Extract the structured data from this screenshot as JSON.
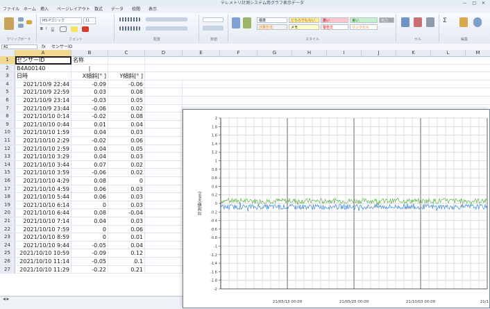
{
  "window": {
    "title": "テレメトリ計測システム用グラフ表示データ"
  },
  "menu_tabs": [
    "ファイル",
    "ホーム",
    "挿入",
    "ページレイアウト",
    "数式",
    "データ",
    "校閲",
    "表示"
  ],
  "ribbon": {
    "font_name": "MS Pゴシック",
    "font_size": "11",
    "styles": [
      "標準",
      "どちらでもない",
      "悪い",
      "良い",
      "計算方法",
      "メモ",
      "警告文",
      "リンクセル",
      "出力"
    ],
    "group_labels": [
      "クリップボード",
      "フォント",
      "配置",
      "数値",
      "スタイル",
      "セル",
      "編集"
    ]
  },
  "formula_bar": {
    "namebox": "A1",
    "fx": "fx",
    "content": "センサーID"
  },
  "columns": [
    "A",
    "B",
    "C",
    "D",
    "E",
    "F",
    "G",
    "H",
    "I",
    "J",
    "K",
    "L",
    "M"
  ],
  "sheet": {
    "header_row": {
      "sensor_label": "センサーID",
      "name_label": "名称"
    },
    "sensor_id": "B4A00140",
    "row2_b_mark": "|",
    "col_headers": {
      "a": "日時",
      "b": "X傾斜[° ]",
      "c": "Y傾斜[° ]"
    },
    "rows": [
      {
        "n": "4",
        "dt": "2021/10/9 22:44",
        "x": "-0.09",
        "y": "-0.06"
      },
      {
        "n": "5",
        "dt": "2021/10/9 22:59",
        "x": "0.03",
        "y": "0.08"
      },
      {
        "n": "6",
        "dt": "2021/10/9 23:14",
        "x": "-0.03",
        "y": "0.05"
      },
      {
        "n": "7",
        "dt": "2021/10/9 23:44",
        "x": "-0.06",
        "y": "0.02"
      },
      {
        "n": "8",
        "dt": "2021/10/10 0:14",
        "x": "-0.02",
        "y": "0.08"
      },
      {
        "n": "9",
        "dt": "2021/10/10 0:44",
        "x": "0.01",
        "y": "0.04"
      },
      {
        "n": "10",
        "dt": "2021/10/10 1:59",
        "x": "0.04",
        "y": "0.03"
      },
      {
        "n": "11",
        "dt": "2021/10/10 2:29",
        "x": "-0.02",
        "y": "0.06"
      },
      {
        "n": "12",
        "dt": "2021/10/10 2:59",
        "x": "0.04",
        "y": "0.05"
      },
      {
        "n": "13",
        "dt": "2021/10/10 3:29",
        "x": "0.04",
        "y": "0.03"
      },
      {
        "n": "14",
        "dt": "2021/10/10 3:44",
        "x": "0.07",
        "y": "0.02"
      },
      {
        "n": "15",
        "dt": "2021/10/10 3:59",
        "x": "-0.06",
        "y": "0.02"
      },
      {
        "n": "16",
        "dt": "2021/10/10 4:29",
        "x": "0.08",
        "y": "0"
      },
      {
        "n": "17",
        "dt": "2021/10/10 4:59",
        "x": "0.06",
        "y": "0.03"
      },
      {
        "n": "18",
        "dt": "2021/10/10 5:44",
        "x": "0.06",
        "y": "0.03"
      },
      {
        "n": "19",
        "dt": "2021/10/10 6:14",
        "x": "0",
        "y": "0.03"
      },
      {
        "n": "20",
        "dt": "2021/10/10 6:44",
        "x": "0.08",
        "y": "-0.04"
      },
      {
        "n": "21",
        "dt": "2021/10/10 7:14",
        "x": "0.04",
        "y": "0.03"
      },
      {
        "n": "22",
        "dt": "2021/10/10 7:59",
        "x": "0",
        "y": "0.06"
      },
      {
        "n": "23",
        "dt": "2021/10/10 8:59",
        "x": "0",
        "y": "0.01"
      },
      {
        "n": "24",
        "dt": "2021/10/10 9:44",
        "x": "-0.05",
        "y": "0.04"
      },
      {
        "n": "25",
        "dt": "2021/10/10 10:59",
        "x": "-0.09",
        "y": "0.12"
      },
      {
        "n": "26",
        "dt": "2021/10/10 11:14",
        "x": "-0.05",
        "y": "0.1"
      },
      {
        "n": "27",
        "dt": "2021/10/10 11:29",
        "x": "-0.22",
        "y": "0.21"
      }
    ]
  },
  "chart_data": {
    "type": "line",
    "ylabel": "計測値(mm)",
    "ylim": [
      -2,
      2
    ],
    "yticks": [
      "2",
      "1.8",
      "1.6",
      "1.4",
      "1.2",
      "1",
      "0.8",
      "0.6",
      "0.4",
      "0.2",
      "0",
      "-0.2",
      "-0.4",
      "-0.6",
      "-0.8",
      "-1",
      "-1.2",
      "-1.4",
      "-1.6",
      "-1.8",
      "-2"
    ],
    "xticks": [
      "21/05/13 00:00",
      "21/05/25 00:00",
      "21/10/03 00:00",
      "21/1"
    ],
    "grid": true,
    "series": [
      {
        "color": "#5fb04a",
        "level": 0.06,
        "noise": 0.06
      },
      {
        "color": "#3a86d8",
        "level": -0.08,
        "noise": 0.06
      }
    ]
  }
}
